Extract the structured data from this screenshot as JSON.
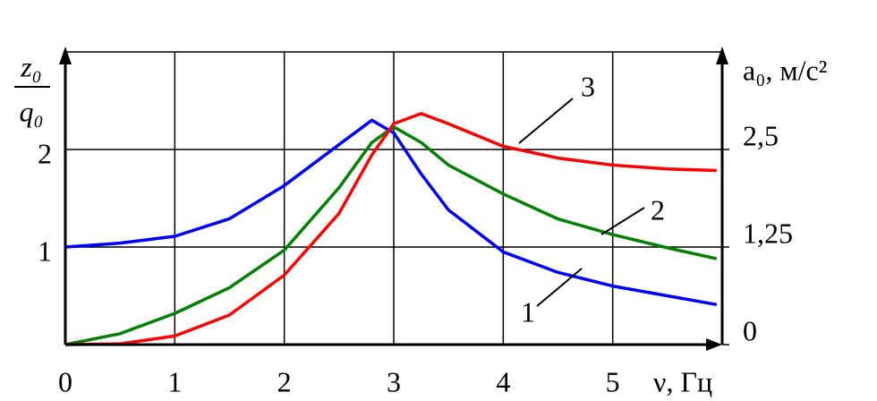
{
  "chart_data": {
    "type": "line",
    "y_label_numerator": "z₀",
    "y_label_denominator": "q₀",
    "y2_label": "a₀, м/с²",
    "x_label": "ν, Гц",
    "x": [
      0,
      0.5,
      1,
      1.5,
      2,
      2.5,
      2.8,
      3,
      3.25,
      3.5,
      4,
      4.5,
      5,
      5.5,
      5.95
    ],
    "xlim": [
      0,
      6
    ],
    "xticks": [
      0,
      1,
      2,
      3,
      4,
      5
    ],
    "ylim": [
      0,
      3
    ],
    "yticks": [
      1,
      2
    ],
    "y2lim": [
      0,
      3.75
    ],
    "y2ticks": [
      0,
      {
        "value": 1.25,
        "label": "1,25"
      },
      {
        "value": 2.5,
        "label": "2,5"
      }
    ],
    "grid": true,
    "series": [
      {
        "name": "1",
        "color": "#0000ff",
        "values": [
          1.0,
          1.04,
          1.11,
          1.29,
          1.63,
          2.05,
          2.3,
          2.17,
          1.75,
          1.38,
          0.95,
          0.74,
          0.6,
          0.5,
          0.41
        ]
      },
      {
        "name": "2",
        "color": "#008000",
        "axis": "y2",
        "values": [
          0,
          0.14,
          0.4,
          0.73,
          1.21,
          2.01,
          2.59,
          2.79,
          2.59,
          2.3,
          1.93,
          1.61,
          1.41,
          1.24,
          1.1
        ]
      },
      {
        "name": "3",
        "color": "#ff0000",
        "axis": "y2",
        "values": [
          0,
          0.01,
          0.11,
          0.38,
          0.89,
          1.68,
          2.43,
          2.83,
          2.96,
          2.83,
          2.54,
          2.39,
          2.3,
          2.25,
          2.23
        ]
      }
    ]
  }
}
